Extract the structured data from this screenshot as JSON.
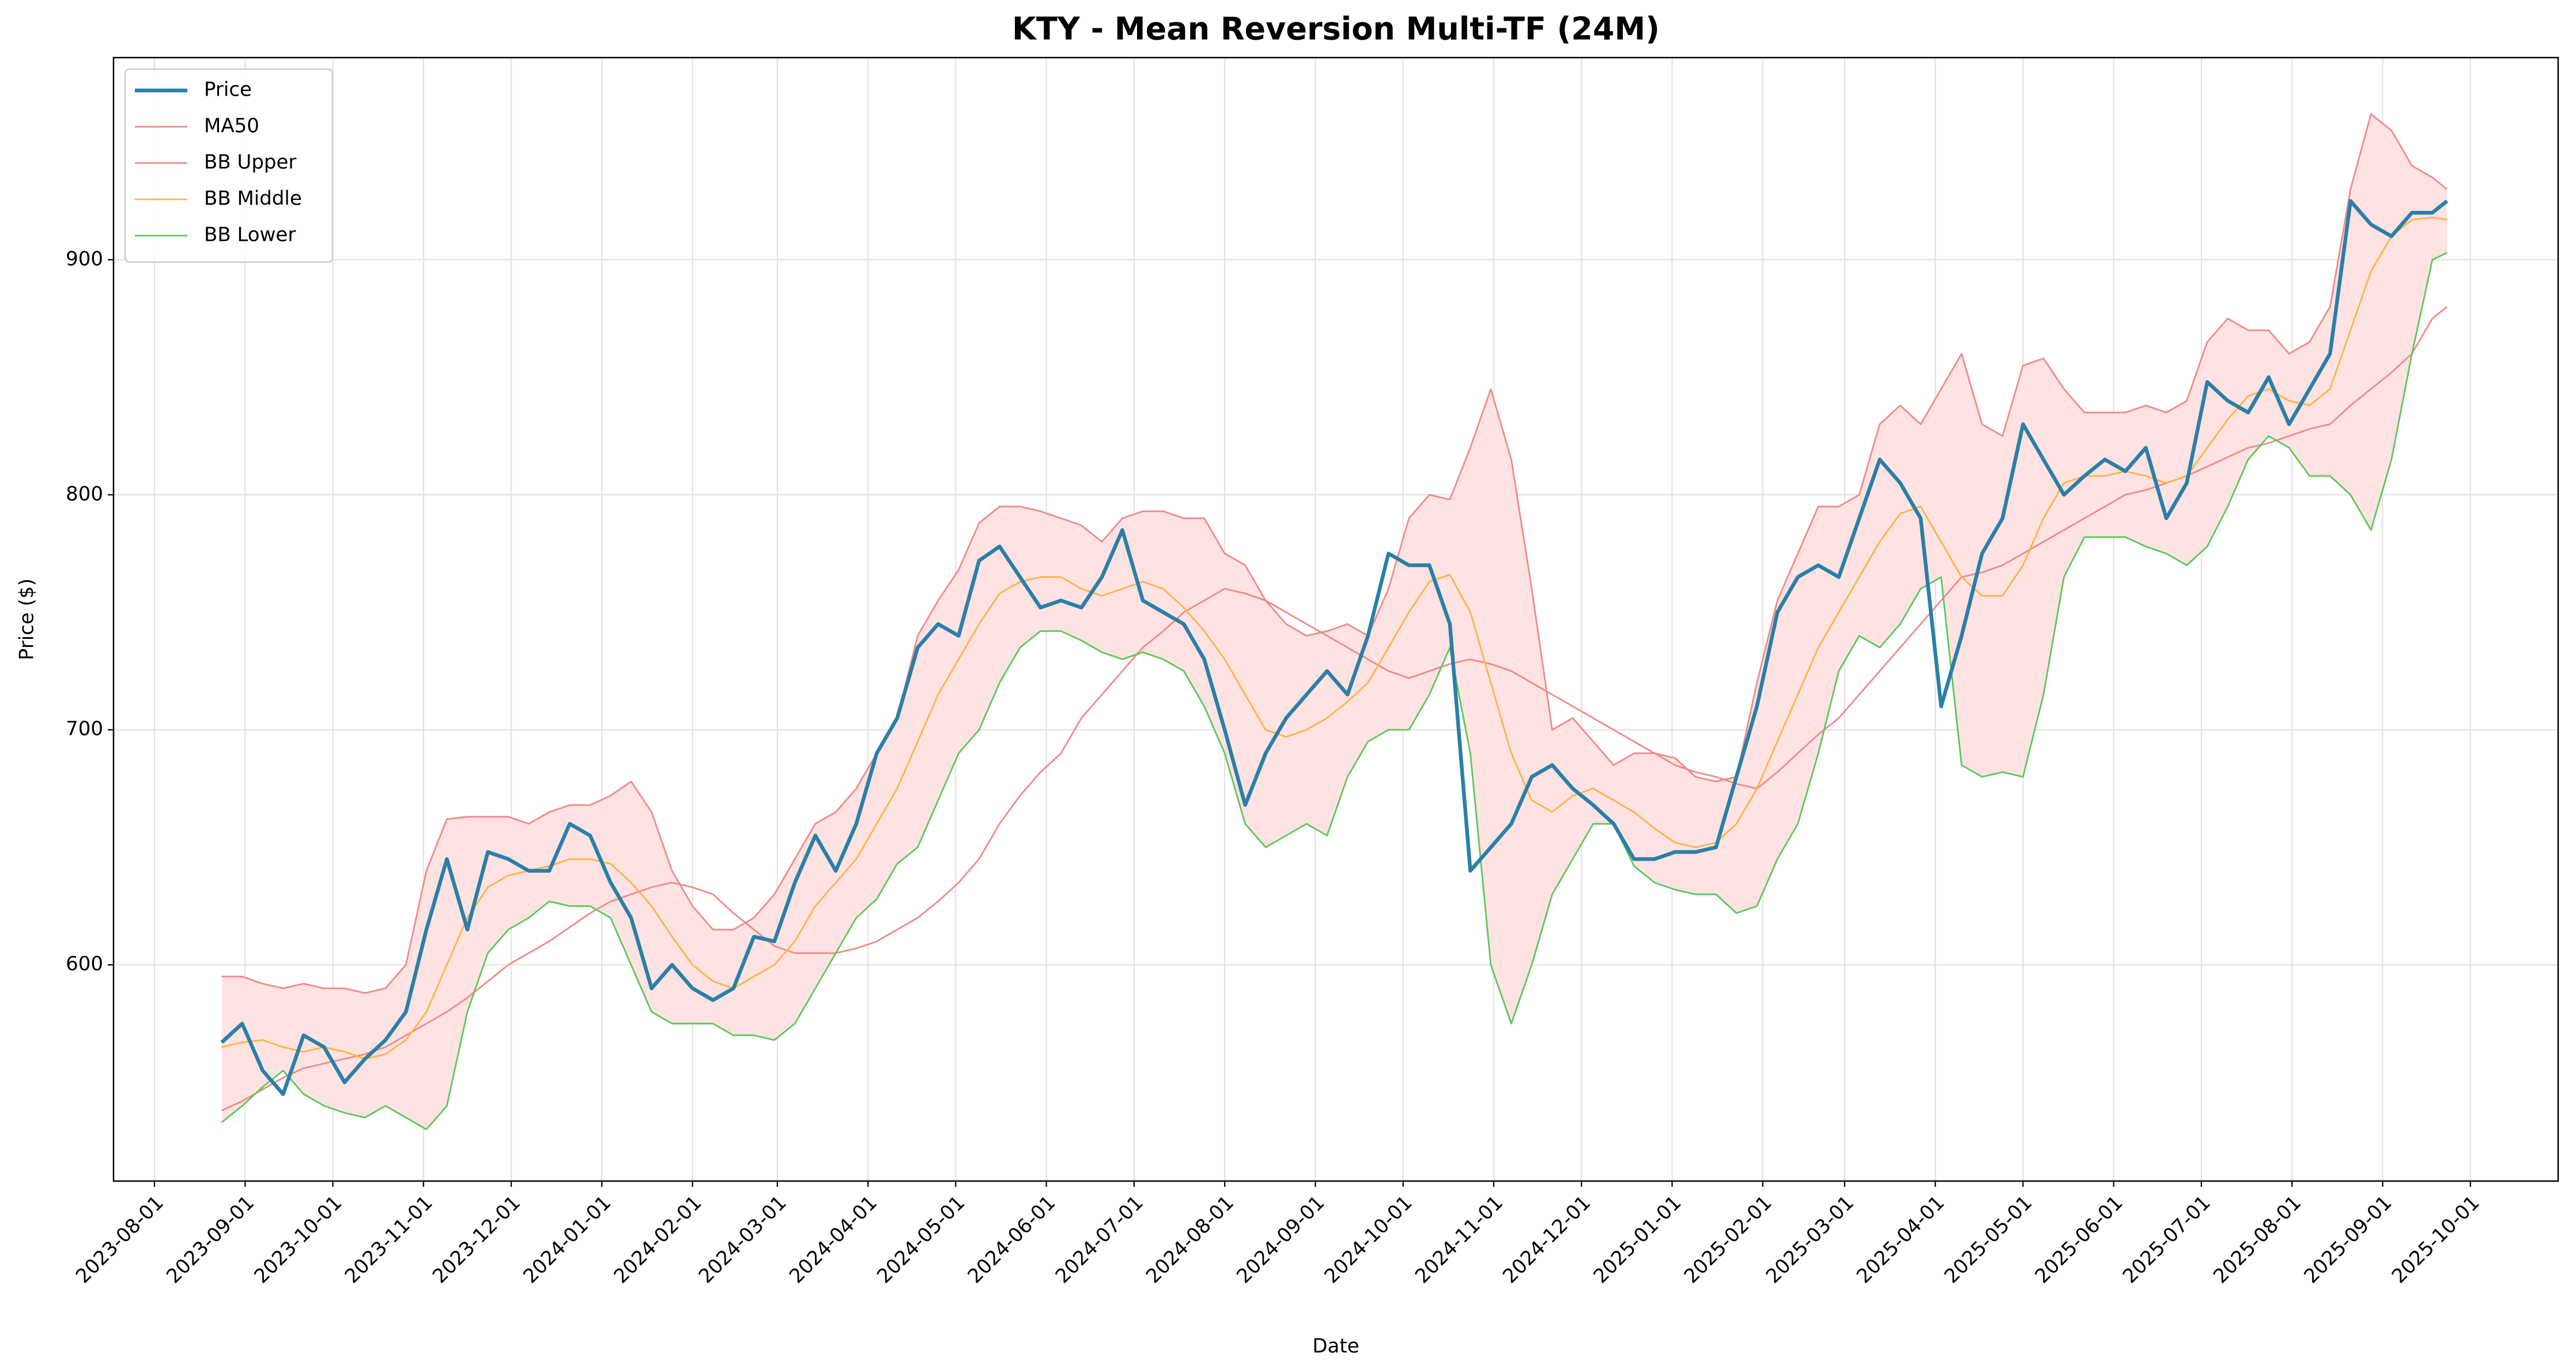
{
  "chart_data": {
    "type": "line",
    "title": "KTY - Mean Reversion Multi-TF (24M)",
    "xlabel": "Date",
    "ylabel": "Price ($)",
    "x": [
      "2023-08-24",
      "2023-08-31",
      "2023-09-07",
      "2023-09-14",
      "2023-09-21",
      "2023-09-28",
      "2023-10-05",
      "2023-10-12",
      "2023-10-19",
      "2023-10-26",
      "2023-11-02",
      "2023-11-09",
      "2023-11-16",
      "2023-11-23",
      "2023-11-30",
      "2023-12-07",
      "2023-12-14",
      "2023-12-21",
      "2023-12-28",
      "2024-01-04",
      "2024-01-11",
      "2024-01-18",
      "2024-01-25",
      "2024-02-01",
      "2024-02-08",
      "2024-02-15",
      "2024-02-22",
      "2024-02-29",
      "2024-03-07",
      "2024-03-14",
      "2024-03-21",
      "2024-03-28",
      "2024-04-04",
      "2024-04-11",
      "2024-04-18",
      "2024-04-25",
      "2024-05-02",
      "2024-05-09",
      "2024-05-16",
      "2024-05-23",
      "2024-05-30",
      "2024-06-06",
      "2024-06-13",
      "2024-06-20",
      "2024-06-27",
      "2024-07-04",
      "2024-07-11",
      "2024-07-18",
      "2024-07-25",
      "2024-08-01",
      "2024-08-08",
      "2024-08-15",
      "2024-08-22",
      "2024-08-29",
      "2024-09-05",
      "2024-09-12",
      "2024-09-19",
      "2024-09-26",
      "2024-10-03",
      "2024-10-10",
      "2024-10-17",
      "2024-10-24",
      "2024-10-31",
      "2024-11-07",
      "2024-11-14",
      "2024-11-21",
      "2024-11-28",
      "2024-12-05",
      "2024-12-12",
      "2024-12-19",
      "2024-12-26",
      "2025-01-02",
      "2025-01-09",
      "2025-01-16",
      "2025-01-23",
      "2025-01-30",
      "2025-02-06",
      "2025-02-13",
      "2025-02-20",
      "2025-02-27",
      "2025-03-06",
      "2025-03-13",
      "2025-03-20",
      "2025-03-27",
      "2025-04-03",
      "2025-04-10",
      "2025-04-17",
      "2025-04-24",
      "2025-05-01",
      "2025-05-08",
      "2025-05-15",
      "2025-05-22",
      "2025-05-29",
      "2025-06-05",
      "2025-06-12",
      "2025-06-19",
      "2025-06-26",
      "2025-07-03",
      "2025-07-10",
      "2025-07-17",
      "2025-07-24",
      "2025-07-31",
      "2025-08-07",
      "2025-08-14",
      "2025-08-21",
      "2025-08-28",
      "2025-09-04",
      "2025-09-11",
      "2025-09-18",
      "2025-09-23"
    ],
    "series": [
      {
        "name": "Price",
        "color": "#2b7fa8",
        "linewidth": 6.5,
        "values": [
          567,
          575,
          555,
          545,
          570,
          565,
          550,
          560,
          568,
          580,
          615,
          645,
          615,
          648,
          645,
          640,
          640,
          660,
          655,
          635,
          620,
          590,
          600,
          590,
          585,
          590,
          612,
          610,
          635,
          655,
          640,
          660,
          690,
          705,
          735,
          745,
          740,
          772,
          778,
          765,
          752,
          755,
          752,
          765,
          785,
          755,
          750,
          745,
          730,
          700,
          668,
          690,
          705,
          715,
          725,
          715,
          740,
          775,
          770,
          770,
          745,
          640,
          650,
          660,
          680,
          685,
          675,
          668,
          660,
          645,
          645,
          648,
          648,
          650,
          680,
          710,
          750,
          765,
          770,
          765,
          790,
          815,
          805,
          790,
          710,
          740,
          775,
          790,
          830,
          815,
          800,
          808,
          815,
          810,
          820,
          790,
          805,
          848,
          840,
          835,
          850,
          830,
          845,
          860,
          925,
          915,
          910,
          920,
          920,
          925
        ]
      },
      {
        "name": "MA50",
        "color": "#f08a8a",
        "linewidth": 2.8,
        "values": [
          538,
          542,
          547,
          552,
          556,
          558,
          560,
          562,
          565,
          570,
          575,
          580,
          586,
          593,
          600,
          605,
          610,
          616,
          622,
          627,
          630,
          633,
          635,
          633,
          630,
          622,
          615,
          608,
          605,
          605,
          605,
          607,
          610,
          615,
          620,
          627,
          635,
          645,
          660,
          672,
          682,
          690,
          705,
          715,
          725,
          735,
          742,
          750,
          755,
          760,
          758,
          755,
          750,
          745,
          740,
          735,
          730,
          725,
          722,
          725,
          728,
          730,
          728,
          725,
          720,
          715,
          710,
          705,
          700,
          695,
          690,
          685,
          682,
          680,
          677,
          675,
          682,
          690,
          698,
          705,
          715,
          725,
          735,
          745,
          755,
          765,
          767,
          770,
          775,
          780,
          785,
          790,
          795,
          800,
          802,
          805,
          808,
          812,
          816,
          820,
          822,
          825,
          828,
          830,
          838,
          845,
          852,
          860,
          875,
          880
        ]
      },
      {
        "name": "BB Upper",
        "color": "#f08a8a",
        "linewidth": 2.8,
        "values": [
          595,
          595,
          592,
          590,
          592,
          590,
          590,
          588,
          590,
          600,
          640,
          662,
          663,
          663,
          663,
          660,
          665,
          668,
          668,
          672,
          678,
          665,
          640,
          625,
          615,
          615,
          620,
          630,
          645,
          660,
          665,
          675,
          690,
          705,
          740,
          755,
          768,
          788,
          795,
          795,
          793,
          790,
          787,
          780,
          790,
          793,
          793,
          790,
          790,
          775,
          770,
          755,
          745,
          740,
          742,
          745,
          740,
          760,
          790,
          800,
          798,
          820,
          845,
          815,
          760,
          700,
          705,
          695,
          685,
          690,
          690,
          688,
          680,
          678,
          680,
          720,
          755,
          775,
          795,
          795,
          800,
          830,
          838,
          830,
          845,
          860,
          830,
          825,
          855,
          858,
          845,
          835,
          835,
          835,
          838,
          835,
          840,
          865,
          875,
          870,
          870,
          860,
          865,
          880,
          930,
          962,
          955,
          940,
          935,
          930
        ]
      },
      {
        "name": "BB Middle",
        "color": "#ffb347",
        "linewidth": 2.8,
        "values": [
          565,
          567,
          568,
          565,
          563,
          565,
          563,
          560,
          562,
          568,
          580,
          600,
          620,
          633,
          638,
          640,
          642,
          645,
          645,
          643,
          635,
          625,
          612,
          600,
          593,
          590,
          595,
          600,
          610,
          625,
          635,
          645,
          660,
          675,
          695,
          715,
          730,
          745,
          758,
          763,
          765,
          765,
          760,
          757,
          760,
          763,
          760,
          752,
          742,
          730,
          715,
          700,
          697,
          700,
          705,
          712,
          720,
          735,
          750,
          763,
          766,
          750,
          720,
          690,
          670,
          665,
          672,
          675,
          670,
          665,
          658,
          652,
          650,
          652,
          660,
          675,
          695,
          715,
          735,
          750,
          765,
          780,
          792,
          795,
          780,
          765,
          757,
          757,
          770,
          790,
          805,
          808,
          808,
          810,
          808,
          805,
          808,
          820,
          832,
          842,
          845,
          840,
          838,
          845,
          870,
          895,
          910,
          917,
          918,
          917
        ]
      },
      {
        "name": "BB Lower",
        "color": "#5cc85c",
        "linewidth": 2.8,
        "values": [
          533,
          540,
          548,
          555,
          545,
          540,
          537,
          535,
          540,
          535,
          530,
          540,
          580,
          605,
          615,
          620,
          627,
          625,
          625,
          620,
          600,
          580,
          575,
          575,
          575,
          570,
          570,
          568,
          575,
          590,
          605,
          620,
          628,
          643,
          650,
          670,
          690,
          700,
          720,
          735,
          742,
          742,
          738,
          733,
          730,
          733,
          730,
          725,
          710,
          690,
          660,
          650,
          655,
          660,
          655,
          680,
          695,
          700,
          700,
          715,
          735,
          690,
          600,
          575,
          600,
          630,
          645,
          660,
          660,
          642,
          635,
          632,
          630,
          630,
          622,
          625,
          645,
          660,
          690,
          725,
          740,
          735,
          745,
          760,
          765,
          685,
          680,
          682,
          680,
          715,
          765,
          782,
          782,
          782,
          778,
          775,
          770,
          778,
          795,
          815,
          825,
          820,
          808,
          808,
          800,
          785,
          815,
          860,
          900,
          903
        ]
      }
    ],
    "band_color": "#ffe3e3",
    "xlim": [
      "2023-07-18",
      "2025-10-31"
    ],
    "xticks": [
      "2023-08-01",
      "2023-09-01",
      "2023-10-01",
      "2023-11-01",
      "2023-12-01",
      "2024-01-01",
      "2024-02-01",
      "2024-03-01",
      "2024-04-01",
      "2024-05-01",
      "2024-06-01",
      "2024-07-01",
      "2024-08-01",
      "2024-09-01",
      "2024-10-01",
      "2024-11-01",
      "2024-12-01",
      "2025-01-01",
      "2025-02-01",
      "2025-03-01",
      "2025-04-01",
      "2025-05-01",
      "2025-06-01",
      "2025-07-01",
      "2025-08-01",
      "2025-09-01",
      "2025-10-01"
    ],
    "ylim": [
      508,
      986
    ],
    "yticks": [
      600,
      700,
      800,
      900
    ],
    "grid": true,
    "legend": "upper left"
  }
}
